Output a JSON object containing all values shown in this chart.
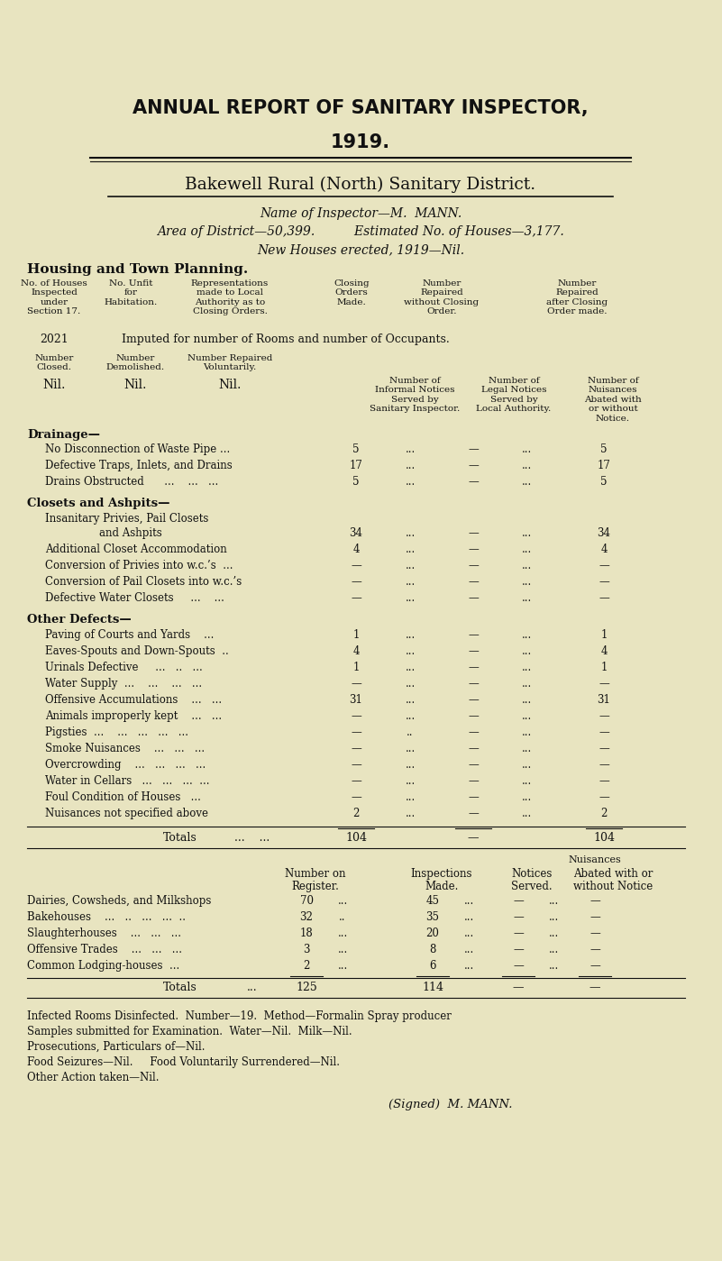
{
  "bg_color": "#e8e4c0",
  "text_color": "#111111",
  "title1": "ANNUAL REPORT OF SANITARY INSPECTOR,",
  "title2": "1919.",
  "subtitle": "Bakewell Rural (North) Sanitary District.",
  "inspector_line": "Name of Inspector—M.  MANN.",
  "area_line": "Area of District—50,399.          Estimated No. of Houses—3,177.",
  "new_houses_line": "New Houses erected, 1919—Nil.",
  "housing_heading": "Housing and Town Planning.",
  "drainage_heading": "Drainage—",
  "drainage_rows": [
    [
      "No Disconnection of Waste Pipe ...",
      "5",
      "...",
      "—",
      "...",
      "5"
    ],
    [
      "Defective Traps, Inlets, and Drains",
      "17",
      "...",
      "—",
      "...",
      "17"
    ],
    [
      "Drains Obstructed      ...    ...   ...",
      "5",
      "...",
      "—",
      "...",
      "5"
    ]
  ],
  "closets_heading": "Closets and Ashpits—",
  "closets_rows": [
    [
      "Insanitary Privies, Pail Closets",
      "and Ashpits",
      "34",
      "...",
      "—",
      "...",
      "34"
    ],
    [
      "Additional Closet Accommodation",
      "",
      "4",
      "...",
      "—",
      "...",
      "4"
    ],
    [
      "Conversion of Privies into w.c.’s  ...",
      "",
      "—",
      "...",
      "—",
      "...",
      "—"
    ],
    [
      "Conversion of Pail Closets into w.c.’s",
      "",
      "—",
      "...",
      "—",
      "...",
      "—"
    ],
    [
      "Defective Water Closets     ...    ...",
      "",
      "—",
      "...",
      "—",
      "...",
      "—"
    ]
  ],
  "other_heading": "Other Defects—",
  "other_rows": [
    [
      "Paving of Courts and Yards    ...",
      "1",
      "...",
      "—",
      "...",
      "1"
    ],
    [
      "Eaves-Spouts and Down-Spouts  ..",
      "4",
      "...",
      "—",
      "...",
      "4"
    ],
    [
      "Urinals Defective     ...   ..   ...",
      "1",
      "...",
      "—",
      "...",
      "1"
    ],
    [
      "Water Supply  ...    ...    ...   ...",
      "—",
      "...",
      "—",
      "...",
      "—"
    ],
    [
      "Offensive Accumulations    ...   ...",
      "31",
      "...",
      "—",
      "...",
      "31"
    ],
    [
      "Animals improperly kept    ...   ...",
      "—",
      "...",
      "—",
      "...",
      "—"
    ],
    [
      "Pigsties  ...    ...   ...   ...   ...",
      "—",
      "..",
      "—",
      "...",
      "—"
    ],
    [
      "Smoke Nuisances    ...   ...   ...",
      "—",
      "...",
      "—",
      "...",
      "—"
    ],
    [
      "Overcrowding    ...   ...   ...   ...",
      "—",
      "...",
      "—",
      "...",
      "—"
    ],
    [
      "Water in Cellars   ...   ...   ...  ...",
      "—",
      "...",
      "—",
      "...",
      "—"
    ],
    [
      "Foul Condition of Houses   ...",
      "—",
      "...",
      "—",
      "...",
      "—"
    ],
    [
      "Nuisances not specified above",
      "2",
      "...",
      "—",
      "...",
      "2"
    ]
  ],
  "register_rows": [
    [
      "Dairies, Cowsheds, and Milkshops",
      "70",
      "...",
      "45",
      "...",
      "—",
      "...",
      "—"
    ],
    [
      "Bakehouses    ...   ..   ...   ...  ..",
      "32",
      "..",
      "35",
      "...",
      "—",
      "...",
      "—"
    ],
    [
      "Slaughterhouses    ...   ...   ...",
      "18",
      "...",
      "20",
      "...",
      "—",
      "...",
      "—"
    ],
    [
      "Offensive Trades    ...   ...   ...",
      "3",
      "...",
      "8",
      "...",
      "—",
      "...",
      "—"
    ],
    [
      "Common Lodging-houses  ...",
      "2",
      "...",
      "6",
      "...",
      "—",
      "...",
      "—"
    ]
  ],
  "infected_line": "Infected Rooms Disinfected.  Number—19.  Method—Formalin Spray producer",
  "samples_line": "Samples submitted for Examination.  Water—Nil.  Milk—Nil.",
  "prosecutions_line": "Prosecutions, Particulars of—Nil.",
  "food_seizures_line": "Food Seizures—Nil.     Food Voluntarily Surrendered—Nil.",
  "other_action_line": "Other Action taken—Nil.",
  "signed_line": "(Signed)  M. MANN."
}
